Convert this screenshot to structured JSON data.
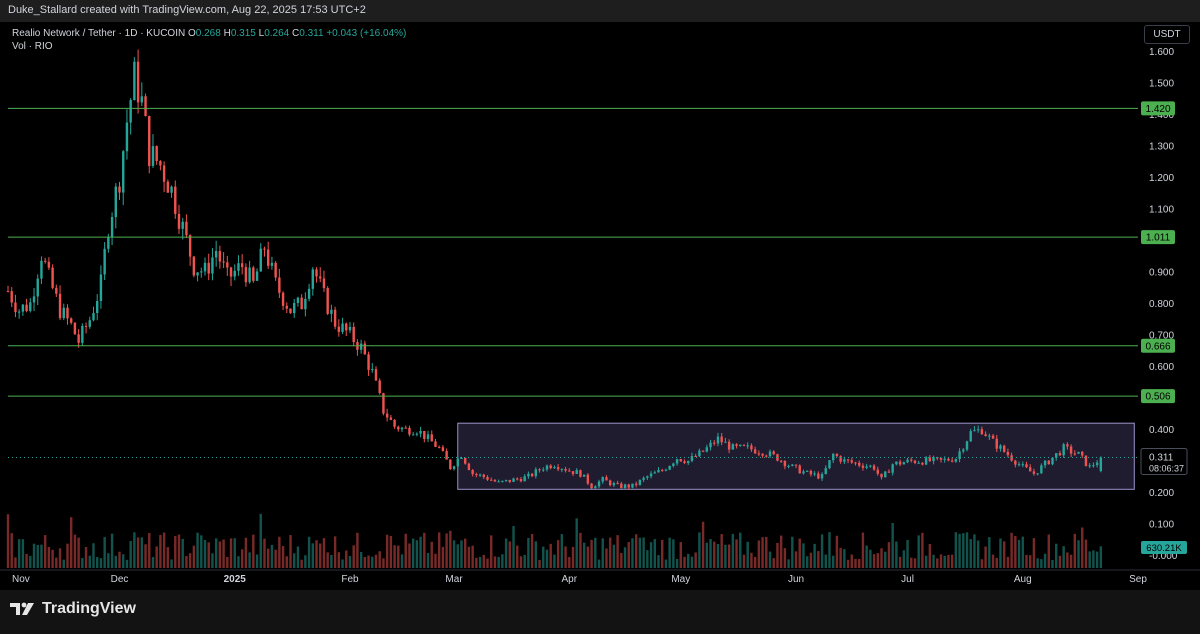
{
  "attribution": "Duke_Stallard created with TradingView.com, Aug 22, 2025 17:53 UTC+2",
  "legend": {
    "symbol": "Realio Network / Tether · 1D · KUCOIN",
    "o_label": "O",
    "o_value": "0.268",
    "h_label": "H",
    "h_value": "0.315",
    "l_label": "L",
    "l_value": "0.264",
    "c_label": "C",
    "c_value": "0.311",
    "change": "+0.043 (+16.04%)",
    "volume_line": "Vol · RIO"
  },
  "currency": "USDT",
  "logo_text": "TradingView",
  "colors": {
    "up": "#26a69a",
    "down": "#ef5350",
    "level_line": "#4caf50",
    "range_box_border": "#9c92c8",
    "range_box_fill": "#2a2540"
  },
  "chart_data": {
    "type": "candlestick",
    "title": "Realio Network / Tether · 1D · KUCOIN",
    "y_ticks": [
      "1.600",
      "1.500",
      "1.400",
      "1.300",
      "1.200",
      "1.100",
      "1.000",
      "0.900",
      "0.800",
      "0.700",
      "0.600",
      "0.500",
      "0.400",
      "0.300",
      "0.200",
      "0.100",
      "-0.000"
    ],
    "ylim": [
      -0.04,
      1.65
    ],
    "x_ticks": [
      "Nov",
      "Dec",
      "2025",
      "Feb",
      "Mar",
      "Apr",
      "May",
      "Jun",
      "Jul",
      "Aug",
      "Sep"
    ],
    "x_tick_dates": [
      "2024-11-01",
      "2024-12-01",
      "2025-01-01",
      "2025-02-01",
      "2025-03-01",
      "2025-04-01",
      "2025-05-01",
      "2025-06-01",
      "2025-07-01",
      "2025-08-01",
      "2025-09-01"
    ],
    "xlim": [
      "2024-11-01",
      "2025-09-01"
    ],
    "price_levels": [
      {
        "value": 1.42,
        "label": "1.420"
      },
      {
        "value": 1.011,
        "label": "1.011"
      },
      {
        "value": 0.666,
        "label": "0.666"
      },
      {
        "value": 0.506,
        "label": "0.506"
      }
    ],
    "last_price": {
      "value": 0.311,
      "label": "0.311",
      "countdown": "08:06:37"
    },
    "volume_label": "630.21K",
    "range_box": {
      "start": "2025-03-02",
      "end": "2025-08-31",
      "low": 0.21,
      "high": 0.42
    },
    "price_path": [
      [
        "2024-11-01",
        0.84
      ],
      [
        "2024-11-04",
        0.78
      ],
      [
        "2024-11-07",
        0.8
      ],
      [
        "2024-11-10",
        0.96
      ],
      [
        "2024-11-12",
        0.88
      ],
      [
        "2024-11-15",
        0.78
      ],
      [
        "2024-11-18",
        0.73
      ],
      [
        "2024-11-20",
        0.68
      ],
      [
        "2024-11-23",
        0.75
      ],
      [
        "2024-11-26",
        0.86
      ],
      [
        "2024-11-28",
        1.05
      ],
      [
        "2024-12-01",
        1.2
      ],
      [
        "2024-12-03",
        1.38
      ],
      [
        "2024-12-05",
        1.52
      ],
      [
        "2024-12-07",
        1.44
      ],
      [
        "2024-12-09",
        1.28
      ],
      [
        "2024-12-12",
        1.24
      ],
      [
        "2024-12-15",
        1.16
      ],
      [
        "2024-12-18",
        1.04
      ],
      [
        "2024-12-21",
        0.92
      ],
      [
        "2024-12-24",
        0.9
      ],
      [
        "2024-12-27",
        0.97
      ],
      [
        "2024-12-30",
        0.88
      ],
      [
        "2025-01-03",
        0.92
      ],
      [
        "2025-01-06",
        0.86
      ],
      [
        "2025-01-09",
        0.98
      ],
      [
        "2025-01-12",
        0.86
      ],
      [
        "2025-01-16",
        0.78
      ],
      [
        "2025-01-19",
        0.8
      ],
      [
        "2025-01-22",
        0.92
      ],
      [
        "2025-01-25",
        0.82
      ],
      [
        "2025-01-28",
        0.74
      ],
      [
        "2025-02-01",
        0.7
      ],
      [
        "2025-02-04",
        0.66
      ],
      [
        "2025-02-07",
        0.58
      ],
      [
        "2025-02-10",
        0.46
      ],
      [
        "2025-02-13",
        0.41
      ],
      [
        "2025-02-16",
        0.4
      ],
      [
        "2025-02-19",
        0.4
      ],
      [
        "2025-02-22",
        0.37
      ],
      [
        "2025-02-25",
        0.34
      ],
      [
        "2025-02-28",
        0.28
      ],
      [
        "2025-03-03",
        0.32
      ],
      [
        "2025-03-06",
        0.26
      ],
      [
        "2025-03-09",
        0.25
      ],
      [
        "2025-03-13",
        0.23
      ],
      [
        "2025-03-17",
        0.24
      ],
      [
        "2025-03-21",
        0.25
      ],
      [
        "2025-03-25",
        0.28
      ],
      [
        "2025-03-28",
        0.29
      ],
      [
        "2025-04-01",
        0.27
      ],
      [
        "2025-04-04",
        0.26
      ],
      [
        "2025-04-07",
        0.22
      ],
      [
        "2025-04-10",
        0.24
      ],
      [
        "2025-04-14",
        0.22
      ],
      [
        "2025-04-18",
        0.22
      ],
      [
        "2025-04-22",
        0.25
      ],
      [
        "2025-04-26",
        0.27
      ],
      [
        "2025-04-30",
        0.31
      ],
      [
        "2025-05-03",
        0.3
      ],
      [
        "2025-05-07",
        0.33
      ],
      [
        "2025-05-11",
        0.37
      ],
      [
        "2025-05-15",
        0.34
      ],
      [
        "2025-05-19",
        0.34
      ],
      [
        "2025-05-23",
        0.33
      ],
      [
        "2025-05-27",
        0.31
      ],
      [
        "2025-05-31",
        0.28
      ],
      [
        "2025-06-04",
        0.26
      ],
      [
        "2025-06-08",
        0.25
      ],
      [
        "2025-06-11",
        0.32
      ],
      [
        "2025-06-14",
        0.3
      ],
      [
        "2025-06-18",
        0.29
      ],
      [
        "2025-06-22",
        0.28
      ],
      [
        "2025-06-24",
        0.24
      ],
      [
        "2025-06-27",
        0.29
      ],
      [
        "2025-07-02",
        0.3
      ],
      [
        "2025-07-06",
        0.3
      ],
      [
        "2025-07-10",
        0.3
      ],
      [
        "2025-07-14",
        0.31
      ],
      [
        "2025-07-18",
        0.39
      ],
      [
        "2025-07-21",
        0.4
      ],
      [
        "2025-07-24",
        0.36
      ],
      [
        "2025-07-28",
        0.32
      ],
      [
        "2025-08-01",
        0.28
      ],
      [
        "2025-08-04",
        0.26
      ],
      [
        "2025-08-08",
        0.3
      ],
      [
        "2025-08-12",
        0.34
      ],
      [
        "2025-08-16",
        0.32
      ],
      [
        "2025-08-19",
        0.28
      ],
      [
        "2025-08-22",
        0.311
      ]
    ]
  }
}
